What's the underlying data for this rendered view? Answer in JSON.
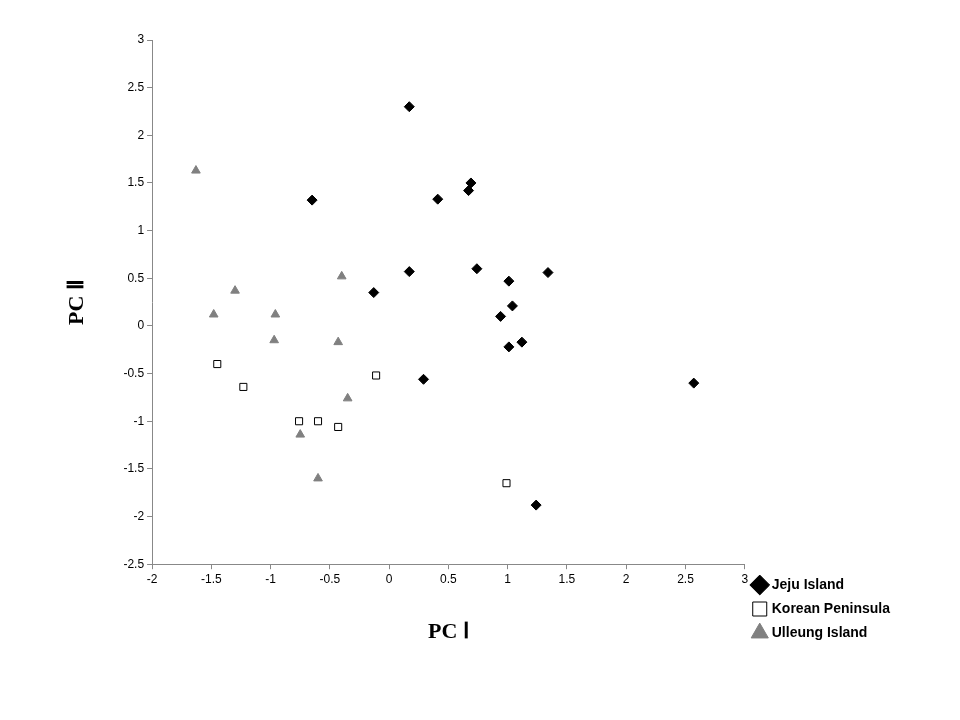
{
  "chart_data": {
    "type": "scatter",
    "x_label": "PC Ⅰ",
    "y_label": "PC Ⅱ",
    "xlim": [
      -2,
      3
    ],
    "xticks": [
      -2,
      -1.5,
      -1,
      -0.5,
      0,
      0.5,
      1,
      1.5,
      2,
      2.5,
      3
    ],
    "ylim": [
      -2.5,
      3
    ],
    "yticks": [
      -2.5,
      -2,
      -1.5,
      -1,
      -0.5,
      0,
      0.5,
      1,
      1.5,
      2,
      2.5,
      3
    ],
    "grid": false,
    "legend": "right",
    "series": [
      {
        "name": "Jeju Island",
        "color": "#000000",
        "marker": "diamond",
        "x": [
          0.17,
          0.69,
          0.67,
          0.41,
          -0.65,
          0.17,
          0.74,
          1.34,
          1.01,
          -0.13,
          1.04,
          0.94,
          1.12,
          1.01,
          0.29,
          2.57,
          1.24
        ],
        "values": [
          2.3,
          1.5,
          1.42,
          1.33,
          1.32,
          0.57,
          0.6,
          0.56,
          0.47,
          0.35,
          0.21,
          0.1,
          -0.17,
          -0.22,
          -0.56,
          -0.6,
          -1.88
        ]
      },
      {
        "name": "Korean Peninsula",
        "color": "#000000",
        "marker": "open_square",
        "x": [
          -1.45,
          -1.23,
          -0.11,
          -0.76,
          -0.6,
          -0.43,
          0.99
        ],
        "values": [
          -0.4,
          -0.64,
          -0.52,
          -1.0,
          -1.0,
          -1.06,
          -1.65
        ]
      },
      {
        "name": "Ulleung Island",
        "color": "#808080",
        "marker": "triangle",
        "x": [
          -1.63,
          -1.3,
          -1.48,
          -0.96,
          -0.4,
          -0.97,
          -0.43,
          -0.35,
          -0.75,
          -0.6
        ],
        "values": [
          1.63,
          0.37,
          0.12,
          0.12,
          0.52,
          -0.15,
          -0.17,
          -0.76,
          -1.14,
          -1.6
        ]
      }
    ]
  }
}
